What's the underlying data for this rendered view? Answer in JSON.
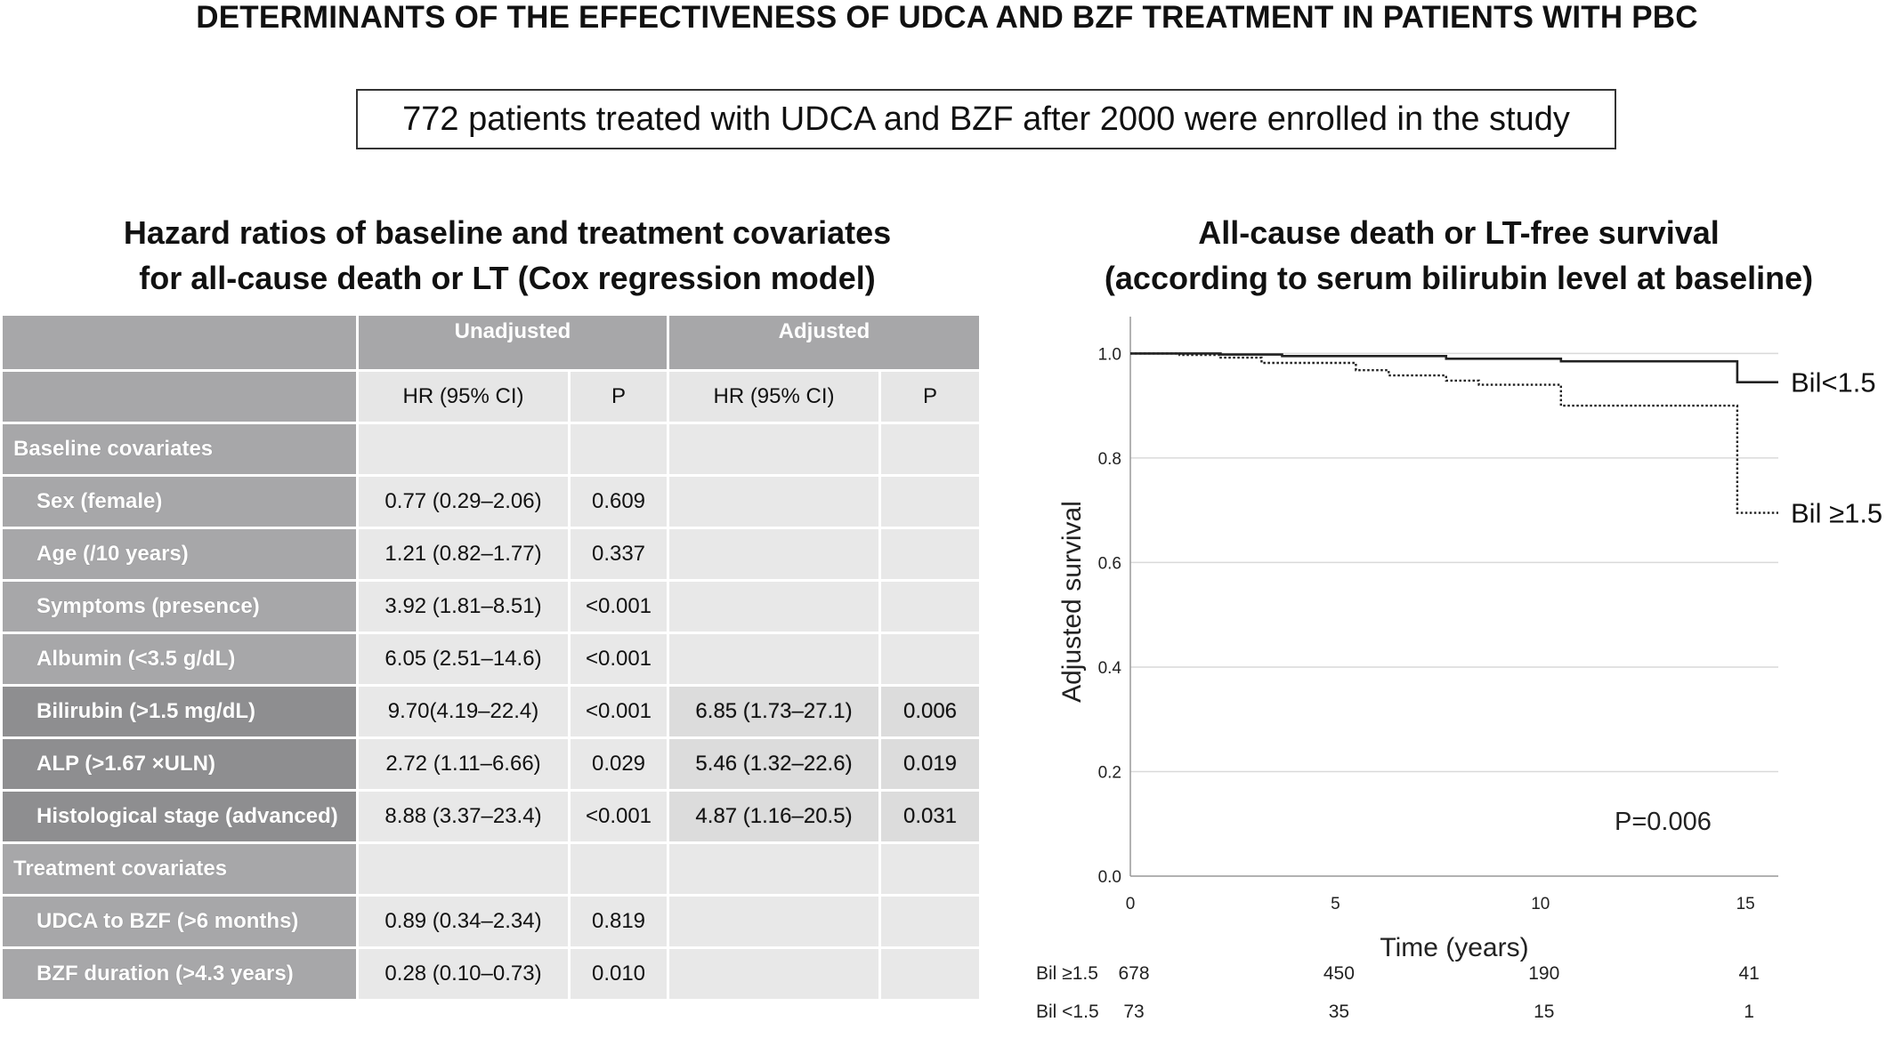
{
  "main_title": "DETERMINANTS OF THE EFFECTIVENESS OF UDCA AND BZF TREATMENT IN PATIENTS WITH PBC",
  "study_box": "772 patients treated with UDCA and BZF after 2000 were enrolled in the study",
  "table": {
    "title_line1": "Hazard ratios of baseline and treatment covariates",
    "title_line2": "for all-cause death or LT (Cox regression model)",
    "group_unadjusted": "Unadjusted",
    "group_adjusted": "Adjusted",
    "col_hr": "HR (95% CI)",
    "col_p": "P",
    "section_baseline": "Baseline covariates",
    "section_treatment": "Treatment covariates",
    "rows": [
      {
        "label": "Sex (female)",
        "u_hr": "0.77 (0.29–2.06)",
        "u_p": "0.609",
        "a_hr": "",
        "a_p": ""
      },
      {
        "label": "Age (/10 years)",
        "u_hr": "1.21 (0.82–1.77)",
        "u_p": "0.337",
        "a_hr": "",
        "a_p": ""
      },
      {
        "label": "Symptoms (presence)",
        "u_hr": "3.92 (1.81–8.51)",
        "u_p": "<0.001",
        "a_hr": "",
        "a_p": ""
      },
      {
        "label": "Albumin (<3.5 g/dL)",
        "u_hr": "6.05 (2.51–14.6)",
        "u_p": "<0.001",
        "a_hr": "",
        "a_p": ""
      },
      {
        "label": "Bilirubin (>1.5 mg/dL)",
        "u_hr": "9.70(4.19–22.4)",
        "u_p": "<0.001",
        "a_hr": "6.85 (1.73–27.1)",
        "a_p": "0.006"
      },
      {
        "label": "ALP (>1.67 ×ULN)",
        "u_hr": "2.72 (1.11–6.66)",
        "u_p": "0.029",
        "a_hr": "5.46 (1.32–22.6)",
        "a_p": "0.019"
      },
      {
        "label": "Histological stage (advanced)",
        "u_hr": "8.88 (3.37–23.4)",
        "u_p": "<0.001",
        "a_hr": "4.87 (1.16–20.5)",
        "a_p": "0.031"
      }
    ],
    "treatment_rows": [
      {
        "label": "UDCA to BZF (>6 months)",
        "u_hr": "0.89 (0.34–2.34)",
        "u_p": "0.819",
        "a_hr": "",
        "a_p": ""
      },
      {
        "label": "BZF duration (>4.3 years)",
        "u_hr": "0.28 (0.10–0.73)",
        "u_p": "0.010",
        "a_hr": "",
        "a_p": ""
      }
    ]
  },
  "chart_data": {
    "type": "line",
    "title": "All-cause death or LT-free survival",
    "subtitle": "(according to serum bilirubin level at baseline)",
    "xlabel": "Time (years)",
    "ylabel": "Adjusted survival",
    "xlim": [
      0,
      15.8
    ],
    "ylim": [
      0,
      1.05
    ],
    "x_ticks": [
      0,
      5,
      10,
      15
    ],
    "y_ticks": [
      0.0,
      0.2,
      0.4,
      0.6,
      0.8,
      1.0
    ],
    "y_tick_labels": [
      "0.0",
      "0.2",
      "0.4",
      "0.6",
      "0.8",
      "1.0"
    ],
    "grid": "horizontal",
    "annotation": "P=0.006",
    "series": [
      {
        "name": "Bil<1.5",
        "style": "solid",
        "points": [
          [
            0,
            1.0
          ],
          [
            2.2,
            1.0
          ],
          [
            2.2,
            0.998
          ],
          [
            3.7,
            0.998
          ],
          [
            3.7,
            0.995
          ],
          [
            7.7,
            0.995
          ],
          [
            7.7,
            0.99
          ],
          [
            10.5,
            0.99
          ],
          [
            10.5,
            0.985
          ],
          [
            14.8,
            0.985
          ],
          [
            14.8,
            0.945
          ],
          [
            15.8,
            0.945
          ]
        ]
      },
      {
        "name": "Bil ≥1.5",
        "style": "dotted",
        "points": [
          [
            0,
            1.0
          ],
          [
            1.2,
            1.0
          ],
          [
            1.2,
            0.997
          ],
          [
            2.2,
            0.997
          ],
          [
            2.2,
            0.992
          ],
          [
            3.2,
            0.992
          ],
          [
            3.2,
            0.982
          ],
          [
            5.5,
            0.982
          ],
          [
            5.5,
            0.968
          ],
          [
            6.3,
            0.968
          ],
          [
            6.3,
            0.958
          ],
          [
            7.7,
            0.958
          ],
          [
            7.7,
            0.948
          ],
          [
            8.5,
            0.948
          ],
          [
            8.5,
            0.94
          ],
          [
            10.5,
            0.94
          ],
          [
            10.5,
            0.9
          ],
          [
            14.8,
            0.9
          ],
          [
            14.8,
            0.695
          ],
          [
            15.8,
            0.695
          ]
        ]
      }
    ],
    "risk_table": {
      "times": [
        0,
        5,
        10,
        15
      ],
      "rows": [
        {
          "label": "Bil ≥1.5",
          "values": [
            "678",
            "450",
            "190",
            "41"
          ]
        },
        {
          "label": "Bil <1.5",
          "values": [
            "73",
            "35",
            "15",
            "1"
          ]
        }
      ]
    }
  }
}
